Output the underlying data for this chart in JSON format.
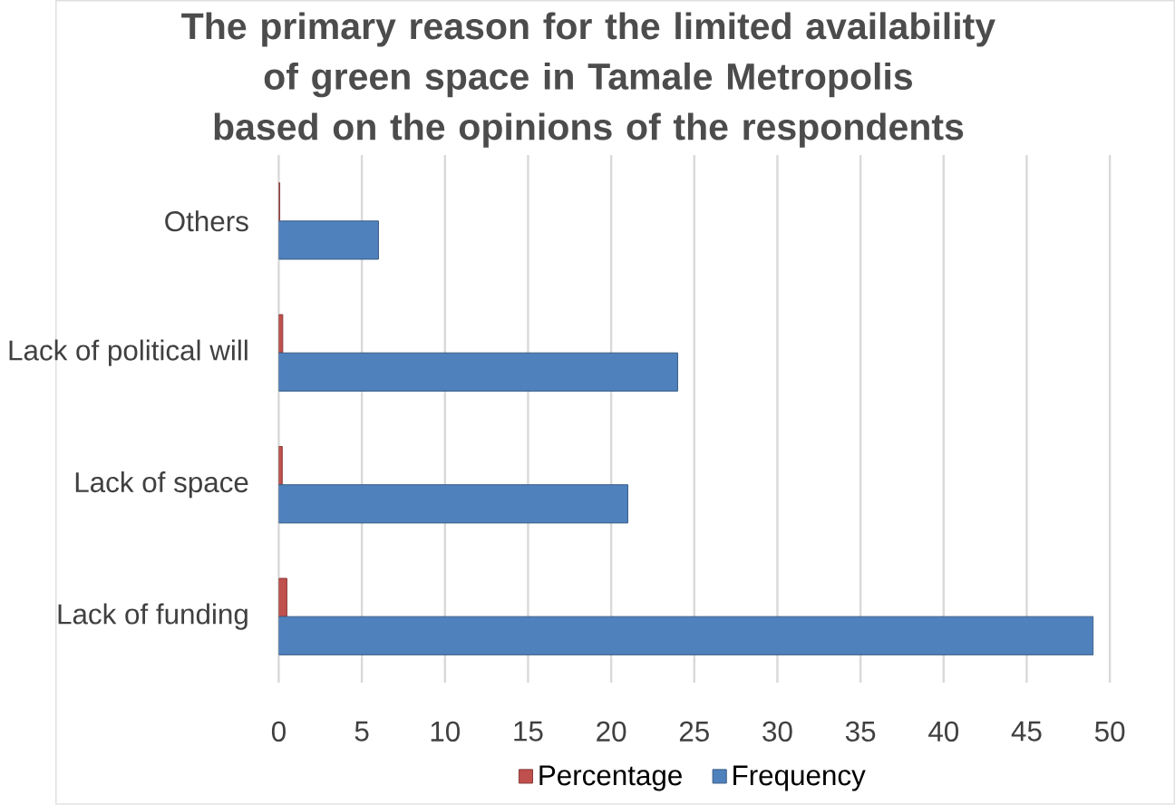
{
  "chart_data": {
    "type": "bar",
    "orientation": "horizontal",
    "title": "The primary reason for the limited availability of green space in Tamale Metropolis based on the opinions of the respondents",
    "categories": [
      "Others",
      "Lack of political will",
      "Lack of space",
      "Lack of funding"
    ],
    "series": [
      {
        "name": "Percentage",
        "color": "#c0504d",
        "values": [
          0.06,
          0.24,
          0.21,
          0.49
        ]
      },
      {
        "name": "Frequency",
        "color": "#4f81bd",
        "values": [
          6,
          24,
          21,
          49
        ]
      }
    ],
    "xlim": [
      0,
      50
    ],
    "xticks": [
      0,
      5,
      10,
      15,
      20,
      25,
      30,
      35,
      40,
      45,
      50
    ],
    "grid": "x",
    "legend": "bottom"
  }
}
